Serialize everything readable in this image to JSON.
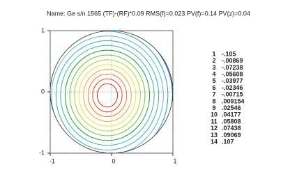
{
  "chart_data": {
    "type": "contour",
    "title": "Name:  Ge s/n 1565 (TF)-(RF)*0.09  RMS(f)=0.023  PV(f)=0.14 PV(z)=0.04",
    "xlim": [
      -1,
      1
    ],
    "ylim": [
      -1,
      1
    ],
    "xticks": [
      -1,
      0,
      1
    ],
    "yticks": [
      -1,
      0,
      1
    ],
    "grid": true,
    "levels": [
      1,
      2,
      3,
      4,
      5,
      6,
      7,
      8,
      9,
      10,
      11,
      12,
      13,
      14
    ],
    "values": [
      -0.105,
      -0.00869,
      -0.07238,
      -0.05608,
      -0.03977,
      -0.02346,
      -0.00715,
      0.009154,
      0.02546,
      0.04177,
      0.05808,
      0.07438,
      0.09069,
      0.107
    ],
    "value_labels": [
      "-.105",
      "-.00869",
      "-.07238",
      "-.05608",
      "-.03977",
      "-.02346",
      "-.00715",
      ".009154",
      ".02546",
      ".04177",
      ".05808",
      ".07438",
      ".09069",
      ".107"
    ],
    "colors": [
      "#1c2f8c",
      "#1f5fb8",
      "#2f8fd8",
      "#5fb8d0",
      "#3ea8a8",
      "#3cb49a",
      "#1a9a3a",
      "#6cc23c",
      "#a8d232",
      "#ece43e",
      "#f2a828",
      "#f07e30",
      "#e04a22",
      "#d42a1e"
    ]
  }
}
